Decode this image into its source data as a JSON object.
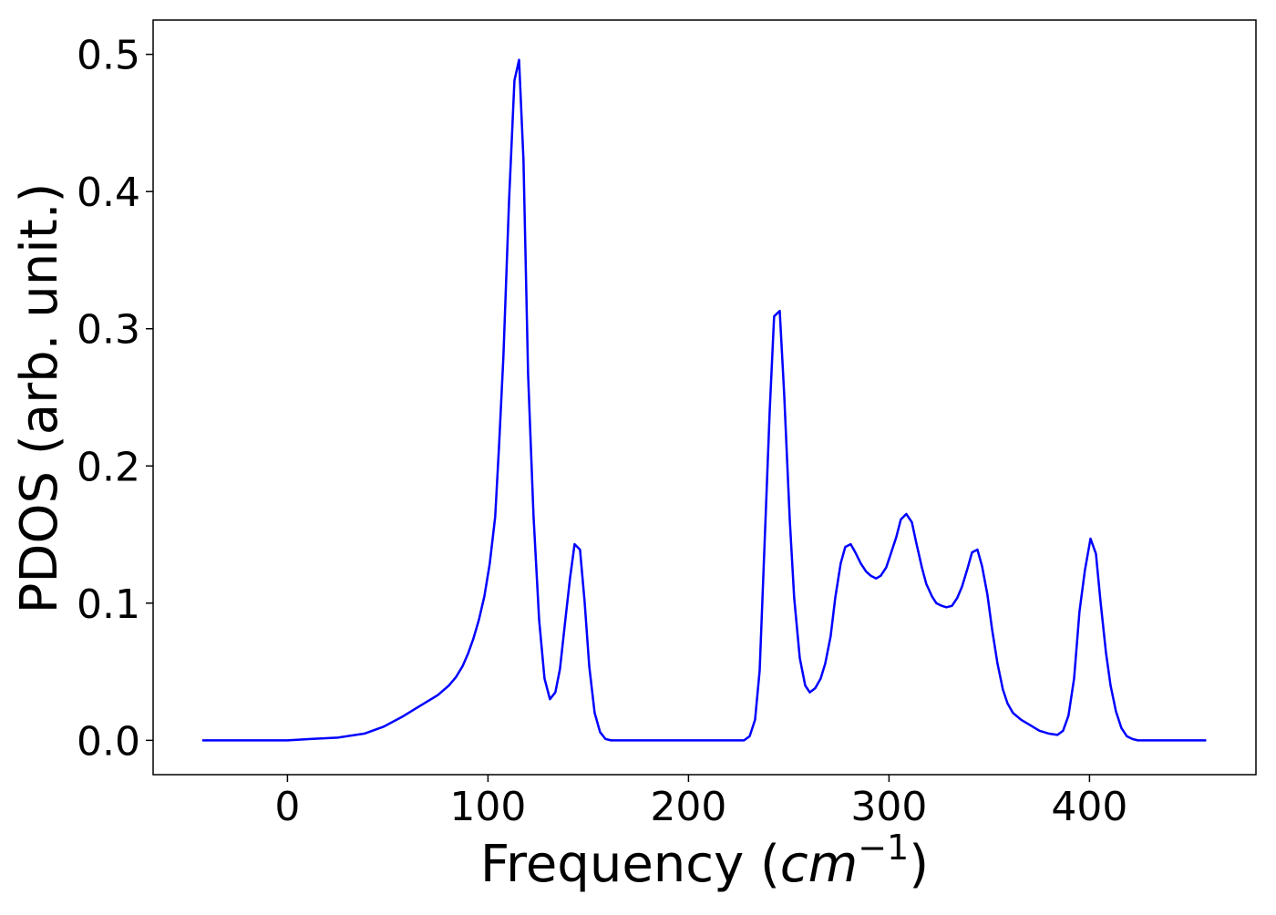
{
  "chart_data": {
    "type": "line",
    "xlabel": [
      "Frequency (",
      "cm",
      "−1",
      ")"
    ],
    "ylabel": "PDOS (arb. unit.)",
    "xlim": [
      -67,
      483
    ],
    "ylim": [
      -0.025,
      0.525
    ],
    "xticks": [
      0,
      100,
      200,
      300,
      400
    ],
    "yticks": [
      {
        "value": 0,
        "label": "0.0"
      },
      {
        "value": 0.1,
        "label": "0.1"
      },
      {
        "value": 0.2,
        "label": "0.2"
      },
      {
        "value": 0.3,
        "label": "0.3"
      },
      {
        "value": 0.4,
        "label": "0.4"
      },
      {
        "value": 0.5,
        "label": "0.5"
      }
    ],
    "x": [
      -42.5,
      0,
      11.4,
      25,
      38.6,
      48,
      57,
      66,
      75,
      80.5,
      84,
      87.3,
      90,
      92.7,
      95.5,
      98.2,
      100.9,
      103.6,
      105.5,
      107.7,
      110.5,
      113.2,
      115.5,
      117.7,
      120,
      122.7,
      125.5,
      128.2,
      130.9,
      133.6,
      135.9,
      138.6,
      140.9,
      143.2,
      145.9,
      148.2,
      150.5,
      153.2,
      155.9,
      158.6,
      161.4,
      227.7,
      230.5,
      233.2,
      235.5,
      237.7,
      240.5,
      242.7,
      245.5,
      247.7,
      250.5,
      252.7,
      255.5,
      258.2,
      260.5,
      263.2,
      265.9,
      268.2,
      270.9,
      273.2,
      275.9,
      278.2,
      280.9,
      283.2,
      285.9,
      288.6,
      290.9,
      293.6,
      295.9,
      298.6,
      300.9,
      303.6,
      305.9,
      308.6,
      311.4,
      313.6,
      316.4,
      318.6,
      321.4,
      323.6,
      326.4,
      328.6,
      331.4,
      334.1,
      336.4,
      339.1,
      341.4,
      344.1,
      346.4,
      349.1,
      351.4,
      354.1,
      356.8,
      359.1,
      361.8,
      365.9,
      370.5,
      375,
      379.5,
      384,
      386.8,
      389.5,
      392.3,
      395,
      397.7,
      400.5,
      403.2,
      405.5,
      408.2,
      410.5,
      413.2,
      415.9,
      418.6,
      421.4,
      424.1,
      458.2
    ],
    "series": [
      {
        "color": "#0000ff",
        "values": [
          0,
          0,
          0.001,
          0.002,
          0.005,
          0.01,
          0.017,
          0.025,
          0.033,
          0.04,
          0.046,
          0.054,
          0.063,
          0.074,
          0.088,
          0.105,
          0.129,
          0.163,
          0.214,
          0.28,
          0.393,
          0.481,
          0.496,
          0.423,
          0.267,
          0.164,
          0.088,
          0.045,
          0.03,
          0.035,
          0.052,
          0.088,
          0.118,
          0.143,
          0.139,
          0.101,
          0.054,
          0.02,
          0.006,
          0.001,
          0,
          0,
          0.003,
          0.015,
          0.051,
          0.134,
          0.24,
          0.309,
          0.313,
          0.253,
          0.161,
          0.104,
          0.06,
          0.04,
          0.035,
          0.038,
          0.045,
          0.056,
          0.076,
          0.104,
          0.129,
          0.141,
          0.143,
          0.137,
          0.129,
          0.123,
          0.12,
          0.118,
          0.12,
          0.126,
          0.136,
          0.148,
          0.161,
          0.165,
          0.159,
          0.144,
          0.126,
          0.114,
          0.105,
          0.1,
          0.098,
          0.097,
          0.098,
          0.104,
          0.112,
          0.125,
          0.137,
          0.139,
          0.127,
          0.106,
          0.081,
          0.056,
          0.037,
          0.027,
          0.02,
          0.015,
          0.011,
          0.007,
          0.005,
          0.004,
          0.007,
          0.018,
          0.045,
          0.094,
          0.124,
          0.147,
          0.136,
          0.101,
          0.064,
          0.04,
          0.021,
          0.009,
          0.003,
          0.001,
          0,
          0
        ]
      }
    ]
  }
}
